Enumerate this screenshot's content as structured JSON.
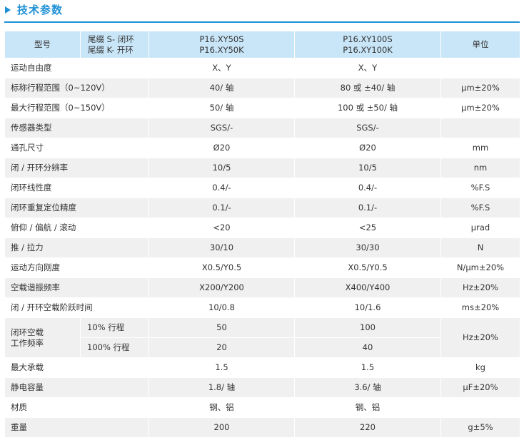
{
  "title": "技术参数",
  "header": {
    "model": "型号",
    "suffix_line1": "尾缀 S- 闭环",
    "suffix_line2": "尾缀 K- 开环",
    "product1_line1": "P16.XY50S",
    "product1_line2": "P16.XY50K",
    "product2_line1": "P16.XY100S",
    "product2_line2": "P16.XY100K",
    "unit": "单位"
  },
  "rows": [
    {
      "label": "运动自由度",
      "v1": "X、Y",
      "v2": "X、Y",
      "unit": ""
    },
    {
      "label": "标称行程范围（0~120V）",
      "v1": "40/ 轴",
      "v2": "80 或 ±40/ 轴",
      "unit": "μm±20%"
    },
    {
      "label": "最大行程范围（0~150V）",
      "v1": "50/ 轴",
      "v2": "100 或 ±50/ 轴",
      "unit": "μm±20%"
    },
    {
      "label": "传感器类型",
      "v1": "SGS/-",
      "v2": "SGS/-",
      "unit": ""
    },
    {
      "label": "通孔尺寸",
      "v1": "Ø20",
      "v2": "Ø20",
      "unit": "mm"
    },
    {
      "label": "闭 / 开环分辨率",
      "v1": "10/5",
      "v2": "10/5",
      "unit": "nm"
    },
    {
      "label": "闭环线性度",
      "v1": "0.4/-",
      "v2": "0.4/-",
      "unit": "%F.S"
    },
    {
      "label": "闭环重复定位精度",
      "v1": "0.1/-",
      "v2": "0.1/-",
      "unit": "%F.S"
    },
    {
      "label": "俯仰 / 偏航 / 滚动",
      "v1": "<20",
      "v2": "<25",
      "unit": "μrad"
    },
    {
      "label": "推 / 拉力",
      "v1": "30/10",
      "v2": "30/30",
      "unit": "N"
    },
    {
      "label": "运动方向刚度",
      "v1": "X0.5/Y0.5",
      "v2": "X0.5/Y0.5",
      "unit": "N/μm±20%"
    },
    {
      "label": "空载谐振频率",
      "v1": "X200/Y200",
      "v2": "X400/Y400",
      "unit": "Hz±20%"
    },
    {
      "label": "闭 / 开环空载阶跃时间",
      "v1": "10/0.8",
      "v2": "10/1.6",
      "unit": "ms±20%"
    }
  ],
  "freq_group": {
    "label_line1": "闭环空载",
    "label_line2": "工作频率",
    "unit": "Hz±20%",
    "sub": [
      {
        "label": "10% 行程",
        "v1": "50",
        "v2": "100"
      },
      {
        "label": "100% 行程",
        "v1": "20",
        "v2": "40"
      }
    ]
  },
  "tail_rows": [
    {
      "label": "最大承载",
      "v1": "1.5",
      "v2": "1.5",
      "unit": "kg"
    },
    {
      "label": "静电容量",
      "v1": "1.8/ 轴",
      "v2": "3.6/ 轴",
      "unit": "μF±20%"
    },
    {
      "label": "材质",
      "v1": "钢、铝",
      "v2": "钢、铝",
      "unit": ""
    },
    {
      "label": "重量",
      "v1": "200",
      "v2": "220",
      "unit": "g±5%"
    }
  ]
}
